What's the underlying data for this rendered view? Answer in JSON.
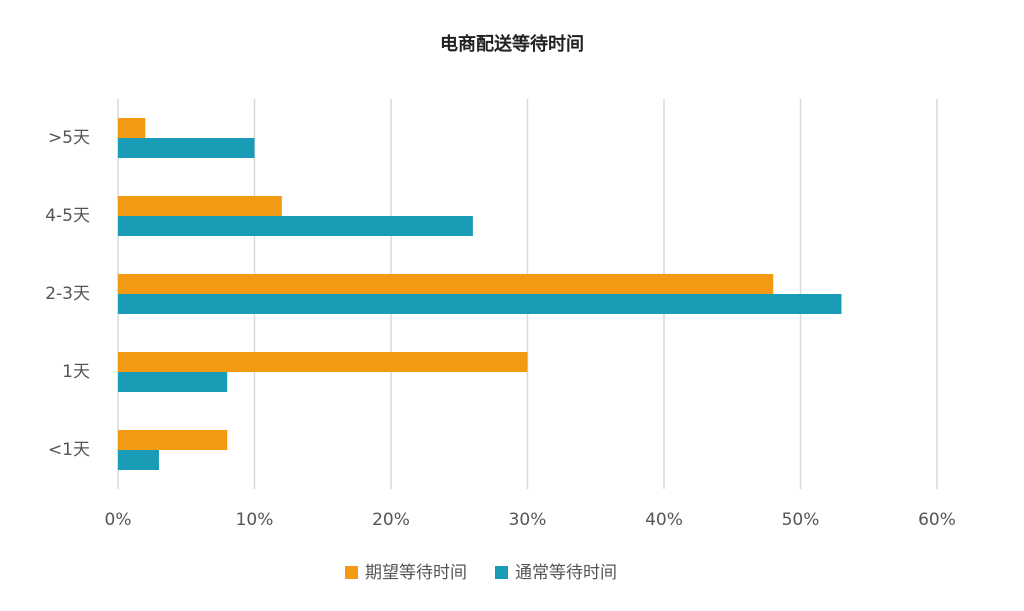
{
  "chart_data": {
    "type": "bar",
    "orientation": "horizontal",
    "title": "电商配送等待时间",
    "categories": [
      ">5天",
      "4-5天",
      "2-3天",
      "1天",
      "<1天"
    ],
    "series": [
      {
        "name": "期望等待时间",
        "color": "#f39a12",
        "values": [
          2,
          12,
          48,
          30,
          8
        ]
      },
      {
        "name": "通常等待时间",
        "color": "#1a9bb6",
        "values": [
          10,
          26,
          53,
          8,
          3
        ]
      }
    ],
    "xlim": [
      0,
      60
    ],
    "xticks": [
      {
        "value": 0,
        "label": "0%"
      },
      {
        "value": 10,
        "label": "10%"
      },
      {
        "value": 20,
        "label": "20%"
      },
      {
        "value": 30,
        "label": "30%"
      },
      {
        "value": 40,
        "label": "40%"
      },
      {
        "value": 50,
        "label": "50%"
      },
      {
        "value": 60,
        "label": "60%"
      }
    ],
    "grid": true,
    "legend": "bottom"
  }
}
